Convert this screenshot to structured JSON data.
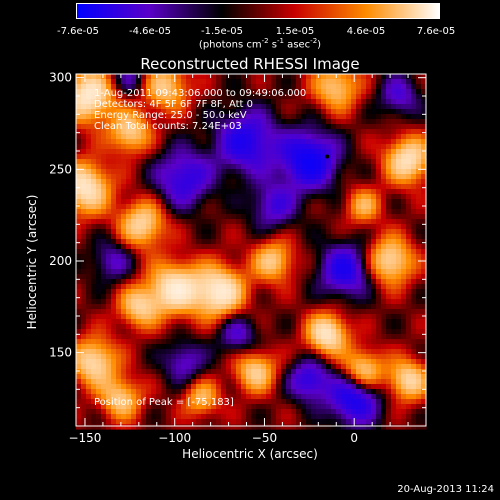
{
  "colorbar": {
    "tick_labels": [
      "-7.6e-05",
      "-4.6e-05",
      "-1.5e-05",
      "1.5e-05",
      "4.6e-05",
      "7.6e-05"
    ],
    "units_prefix": "(photons cm",
    "units_exp1": "-2",
    "units_mid": " s",
    "units_exp2": "-1",
    "units_mid2": " asec",
    "units_exp3": "-2",
    "units_suffix": ")",
    "range": [
      -7.6e-05,
      7.6e-05
    ]
  },
  "info": {
    "line1": "1-Aug-2011 09:43:06.000 to 09:49:06.000",
    "line2": "Detectors: 4F 5F 6F 7F 8F, Att 0",
    "line3": "Energy Range: 25.0 - 50.0 keV",
    "line4": "Clean     Total counts: 7.24E+03",
    "peak": "Position of Peak = [-75,183]"
  },
  "footer": "20-Aug-2013 11:24",
  "chart_data": {
    "type": "heatmap",
    "title": "Reconstructed RHESSI Image",
    "xlabel": "Heliocentric X (arcsec)",
    "ylabel": "Heliocentric Y (arcsec)",
    "xlim": [
      -155,
      40
    ],
    "ylim": [
      110,
      302
    ],
    "x_ticks": [
      -150,
      -100,
      -50,
      0
    ],
    "y_ticks": [
      150,
      200,
      250,
      300
    ],
    "peak": [
      -75,
      183
    ],
    "colormap_stops": [
      "#0000ff",
      "#5a00c8",
      "#000000",
      "#c80000",
      "#ff8c00",
      "#ffffff"
    ],
    "sources": [
      {
        "x": -148,
        "y": 290,
        "amp": 1.0,
        "sigma": 10
      },
      {
        "x": -150,
        "y": 240,
        "amp": 0.95,
        "sigma": 10
      },
      {
        "x": -125,
        "y": 270,
        "amp": 0.75,
        "sigma": 8
      },
      {
        "x": -105,
        "y": 295,
        "amp": 0.7,
        "sigma": 9
      },
      {
        "x": -118,
        "y": 220,
        "amp": 0.8,
        "sigma": 9
      },
      {
        "x": -100,
        "y": 185,
        "amp": 0.95,
        "sigma": 10
      },
      {
        "x": -75,
        "y": 183,
        "amp": 1.0,
        "sigma": 10
      },
      {
        "x": -120,
        "y": 175,
        "amp": 0.7,
        "sigma": 8
      },
      {
        "x": -45,
        "y": 200,
        "amp": 0.7,
        "sigma": 8
      },
      {
        "x": -15,
        "y": 160,
        "amp": 0.95,
        "sigma": 8
      },
      {
        "x": 5,
        "y": 140,
        "amp": 0.85,
        "sigma": 8
      },
      {
        "x": 20,
        "y": 200,
        "amp": 0.85,
        "sigma": 9
      },
      {
        "x": 30,
        "y": 255,
        "amp": 0.9,
        "sigma": 9
      },
      {
        "x": 30,
        "y": 135,
        "amp": 0.8,
        "sigma": 8
      },
      {
        "x": -55,
        "y": 140,
        "amp": 0.75,
        "sigma": 8
      },
      {
        "x": -145,
        "y": 145,
        "amp": 0.85,
        "sigma": 9
      },
      {
        "x": -130,
        "y": 125,
        "amp": 0.7,
        "sigma": 8
      },
      {
        "x": -85,
        "y": 125,
        "amp": 0.6,
        "sigma": 7
      },
      {
        "x": -10,
        "y": 295,
        "amp": 0.7,
        "sigma": 9
      },
      {
        "x": 5,
        "y": 230,
        "amp": 0.55,
        "sigma": 7
      },
      {
        "x": -25,
        "y": 255,
        "amp": -1.0,
        "sigma": 11
      },
      {
        "x": -60,
        "y": 265,
        "amp": -0.8,
        "sigma": 12
      },
      {
        "x": -95,
        "y": 245,
        "amp": -0.7,
        "sigma": 11
      },
      {
        "x": -5,
        "y": 195,
        "amp": -0.8,
        "sigma": 10
      },
      {
        "x": 0,
        "y": 125,
        "amp": -0.9,
        "sigma": 10
      },
      {
        "x": -25,
        "y": 135,
        "amp": -0.7,
        "sigma": 8
      },
      {
        "x": -65,
        "y": 160,
        "amp": -0.5,
        "sigma": 8
      },
      {
        "x": -135,
        "y": 200,
        "amp": -0.45,
        "sigma": 8
      },
      {
        "x": -95,
        "y": 145,
        "amp": -0.5,
        "sigma": 8
      },
      {
        "x": -45,
        "y": 230,
        "amp": -0.55,
        "sigma": 9
      },
      {
        "x": -125,
        "y": 300,
        "amp": -0.4,
        "sigma": 7
      },
      {
        "x": 25,
        "y": 290,
        "amp": -0.5,
        "sigma": 8
      }
    ]
  }
}
